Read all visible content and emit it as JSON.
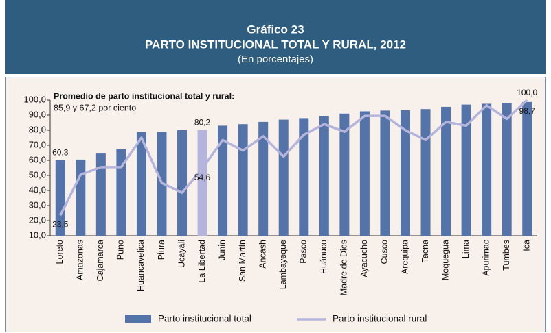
{
  "chart_data": {
    "type": "bar_line",
    "title": "Gráfico 23",
    "subtitle": "PARTO INSTITUCIONAL TOTAL Y RURAL, 2012",
    "unit_note": "(En porcentajes)",
    "annotation": {
      "title": "Promedio de parto institucional total y rural:",
      "text": "85,9 y 67,2 por ciento"
    },
    "categories": [
      "Loreto",
      "Amazonas",
      "Cajamarca",
      "Puno",
      "Huancavelica",
      "Piura",
      "Ucayali",
      "La Libertad",
      "Junin",
      "San Martín",
      "Ancash",
      "Lambayeque",
      "Pasco",
      "Huánuco",
      "Madre de Dios",
      "Ayacucho",
      "Cusco",
      "Arequipa",
      "Tacna",
      "Moquegua",
      "Lima",
      "Apurimac",
      "Tumbes",
      "Ica"
    ],
    "highlight": "La Libertad",
    "highlight_color": "#b4b4dc",
    "series": [
      {
        "name": "Parto institucional total",
        "type": "bar",
        "color": "#5473a8",
        "values": [
          60.3,
          60.5,
          64.5,
          67.5,
          79,
          79,
          80,
          80.2,
          83,
          84,
          85.5,
          87,
          88,
          89.5,
          91,
          92.5,
          93,
          93.3,
          94,
          95.5,
          97,
          97.5,
          98,
          98.7
        ],
        "value_labels": [
          "60,3",
          null,
          null,
          null,
          null,
          null,
          null,
          "80,2",
          null,
          null,
          null,
          null,
          null,
          null,
          null,
          null,
          null,
          null,
          null,
          null,
          null,
          null,
          null,
          "98,7"
        ]
      },
      {
        "name": "Parto institucional rural",
        "type": "line",
        "color": "#b4b4dc",
        "values": [
          23.5,
          50.5,
          55.5,
          55.5,
          75,
          45,
          38.5,
          54.6,
          73.5,
          66.5,
          76,
          62.5,
          77,
          84,
          79,
          89.5,
          89.5,
          80,
          73.5,
          85.5,
          83,
          96.5,
          87.5,
          100
        ],
        "value_labels": [
          "23,5",
          null,
          null,
          null,
          null,
          null,
          null,
          "54,6",
          null,
          null,
          null,
          null,
          null,
          null,
          null,
          null,
          null,
          null,
          null,
          null,
          null,
          null,
          null,
          "100,0"
        ]
      }
    ],
    "ylim": [
      10,
      100
    ],
    "yticks": [
      {
        "value": 10,
        "label": "10,0"
      },
      {
        "value": 20,
        "label": "20,0"
      },
      {
        "value": 30,
        "label": "30,0"
      },
      {
        "value": 40,
        "label": "40,0"
      },
      {
        "value": 50,
        "label": "50,0"
      },
      {
        "value": 60,
        "label": "60,0"
      },
      {
        "value": 70,
        "label": "70,0"
      },
      {
        "value": 80,
        "label": "80,0"
      },
      {
        "value": 90,
        "label": "90,0"
      },
      {
        "value": 100,
        "label": "100,0"
      }
    ],
    "grid": false
  }
}
